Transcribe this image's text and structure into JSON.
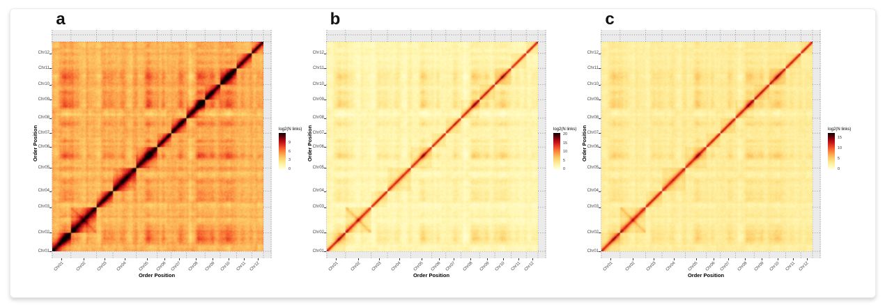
{
  "figure": {
    "kind": "scientific-figure",
    "description": "Three chromosome-by-chromosome contact heatmaps (Hi-C style link density, log2 scale) for 12 chromosomes ordered by position"
  },
  "chart_data": {
    "type": "heatmap",
    "axis_categories": [
      "Chr01",
      "Chr02",
      "Chr03",
      "Chr04",
      "Chr05",
      "Chr06",
      "Chr07",
      "Chr08",
      "Chr09",
      "Chr10",
      "Chr11",
      "Chr12"
    ],
    "chromosome_rel_sizes": [
      27,
      37,
      23,
      32,
      30,
      21,
      22,
      26,
      21,
      24,
      21,
      17
    ],
    "panel_bg": "#EBEBEB",
    "grid_color": "rgba(45,45,45,0.5)",
    "colormap_stops": [
      [
        0,
        "#FFFFD9"
      ],
      [
        0.1,
        "#FFF7B3"
      ],
      [
        0.2,
        "#FEE78F"
      ],
      [
        0.3,
        "#FDCE6B"
      ],
      [
        0.4,
        "#FCAB51"
      ],
      [
        0.5,
        "#FA7F3B"
      ],
      [
        0.58,
        "#F25B2B"
      ],
      [
        0.66,
        "#E03423"
      ],
      [
        0.75,
        "#C01317"
      ],
      [
        0.84,
        "#8B0310"
      ],
      [
        0.92,
        "#4A0006"
      ],
      [
        1,
        "#0A0000"
      ]
    ],
    "panels": [
      {
        "label": "a",
        "x_title": "Order Position",
        "y_title": "Order Position",
        "legend_title": "log2(N links)",
        "legend_ticks": [
          9,
          6,
          3,
          0
        ],
        "legend_max": 12.3,
        "render": {
          "bg": 0.4,
          "plaid": 0.11,
          "stripe": 0.075,
          "block": 0.045,
          "diag_amp": 0.6,
          "diag_width": 0.3,
          "core": 0.97,
          "anti": 0.1,
          "noise": 0.035,
          "seed": 3
        }
      },
      {
        "label": "b",
        "x_title": "Order Position",
        "y_title": "Order Position",
        "legend_title": "log2(N links)",
        "legend_ticks": [
          20,
          15,
          10,
          5,
          0
        ],
        "legend_max": 21,
        "render": {
          "bg": 0.125,
          "plaid": 0.085,
          "stripe": 0.05,
          "block": 0.075,
          "diag_amp": 0.54,
          "diag_width": 0.11,
          "core": 0.68,
          "anti": 0.16,
          "noise": 0.03,
          "seed": 8
        }
      },
      {
        "label": "c",
        "x_title": "Order Position",
        "y_title": "Order Position",
        "legend_title": "log2(N links)",
        "legend_ticks": [
          15,
          10,
          5,
          0
        ],
        "legend_max": 17.4,
        "render": {
          "bg": 0.175,
          "plaid": 0.07,
          "stripe": 0.045,
          "block": 0.06,
          "diag_amp": 0.52,
          "diag_width": 0.13,
          "core": 0.7,
          "anti": 0.13,
          "noise": 0.028,
          "seed": 5
        }
      }
    ]
  }
}
